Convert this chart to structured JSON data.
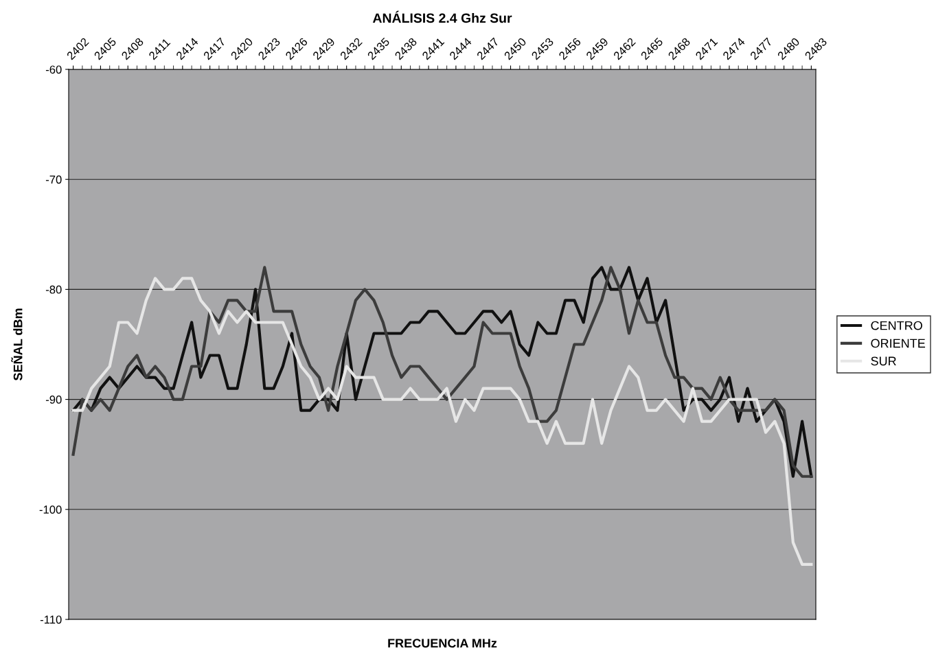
{
  "chart_data": {
    "type": "line",
    "title": "ANÁLISIS 2.4 Ghz Sur",
    "xlabel": "FRECUENCIA MHz",
    "ylabel": "SEÑAL dBm",
    "x": [
      2402,
      2403,
      2404,
      2405,
      2406,
      2407,
      2408,
      2409,
      2410,
      2411,
      2412,
      2413,
      2414,
      2415,
      2416,
      2417,
      2418,
      2419,
      2420,
      2421,
      2422,
      2423,
      2424,
      2425,
      2426,
      2427,
      2428,
      2429,
      2430,
      2431,
      2432,
      2433,
      2434,
      2435,
      2436,
      2437,
      2438,
      2439,
      2440,
      2441,
      2442,
      2443,
      2444,
      2445,
      2446,
      2447,
      2448,
      2449,
      2450,
      2451,
      2452,
      2453,
      2454,
      2455,
      2456,
      2457,
      2458,
      2459,
      2460,
      2461,
      2462,
      2463,
      2464,
      2465,
      2466,
      2467,
      2468,
      2469,
      2470,
      2471,
      2472,
      2473,
      2474,
      2475,
      2476,
      2477,
      2478,
      2479,
      2480,
      2481,
      2482,
      2483
    ],
    "xlim": [
      2401.5,
      2483.5
    ],
    "xticks": [
      2402,
      {
        "value": 2403,
        "label": null
      },
      {
        "value": 2404,
        "label": null
      },
      2405,
      {
        "value": 2406,
        "label": null
      },
      {
        "value": 2407,
        "label": null
      },
      2408,
      {
        "value": 2409,
        "label": null
      },
      {
        "value": 2410,
        "label": null
      },
      2411,
      {
        "value": 2412,
        "label": null
      },
      {
        "value": 2413,
        "label": null
      },
      2414,
      {
        "value": 2415,
        "label": null
      },
      {
        "value": 2416,
        "label": null
      },
      2417,
      {
        "value": 2418,
        "label": null
      },
      {
        "value": 2419,
        "label": null
      },
      2420,
      {
        "value": 2421,
        "label": null
      },
      {
        "value": 2422,
        "label": null
      },
      2423,
      {
        "value": 2424,
        "label": null
      },
      {
        "value": 2425,
        "label": null
      },
      2426,
      {
        "value": 2427,
        "label": null
      },
      {
        "value": 2428,
        "label": null
      },
      2429,
      {
        "value": 2430,
        "label": null
      },
      {
        "value": 2431,
        "label": null
      },
      2432,
      {
        "value": 2433,
        "label": null
      },
      {
        "value": 2434,
        "label": null
      },
      2435,
      {
        "value": 2436,
        "label": null
      },
      {
        "value": 2437,
        "label": null
      },
      2438,
      {
        "value": 2439,
        "label": null
      },
      {
        "value": 2440,
        "label": null
      },
      2441,
      {
        "value": 2442,
        "label": null
      },
      {
        "value": 2443,
        "label": null
      },
      2444,
      {
        "value": 2445,
        "label": null
      },
      {
        "value": 2446,
        "label": null
      },
      2447,
      {
        "value": 2448,
        "label": null
      },
      {
        "value": 2449,
        "label": null
      },
      2450,
      {
        "value": 2451,
        "label": null
      },
      {
        "value": 2452,
        "label": null
      },
      2453,
      {
        "value": 2454,
        "label": null
      },
      {
        "value": 2455,
        "label": null
      },
      2456,
      {
        "value": 2457,
        "label": null
      },
      {
        "value": 2458,
        "label": null
      },
      2459,
      {
        "value": 2460,
        "label": null
      },
      {
        "value": 2461,
        "label": null
      },
      2462,
      {
        "value": 2463,
        "label": null
      },
      {
        "value": 2464,
        "label": null
      },
      2465,
      {
        "value": 2466,
        "label": null
      },
      {
        "value": 2467,
        "label": null
      },
      2468,
      {
        "value": 2469,
        "label": null
      },
      {
        "value": 2470,
        "label": null
      },
      2471,
      {
        "value": 2472,
        "label": null
      },
      {
        "value": 2473,
        "label": null
      },
      2474,
      {
        "value": 2475,
        "label": null
      },
      {
        "value": 2476,
        "label": null
      },
      2477,
      {
        "value": 2478,
        "label": null
      },
      {
        "value": 2479,
        "label": null
      },
      2480,
      {
        "value": 2481,
        "label": null
      },
      {
        "value": 2482,
        "label": null
      },
      2483
    ],
    "series": [
      {
        "name": "CENTRO",
        "color": "#111111",
        "values": [
          -91,
          -90,
          -91,
          -89,
          -88,
          -89,
          -88,
          -87,
          -88,
          -88,
          -89,
          -89,
          -86,
          -83,
          -88,
          -86,
          -86,
          -89,
          -89,
          -85,
          -80,
          -89,
          -89,
          -87,
          -84,
          -91,
          -91,
          -90,
          -90,
          -91,
          -84,
          -90,
          -87,
          -84,
          -84,
          -84,
          -84,
          -83,
          -83,
          -82,
          -82,
          -83,
          -84,
          -84,
          -83,
          -82,
          -82,
          -83,
          -82,
          -85,
          -86,
          -83,
          -84,
          -84,
          -81,
          -81,
          -83,
          -79,
          -78,
          -80,
          -80,
          -78,
          -81,
          -79,
          -83,
          -81,
          -86,
          -91,
          -90,
          -90,
          -91,
          -90,
          -88,
          -92,
          -89,
          -92,
          -91,
          -90,
          -92,
          -97,
          -92,
          -97
        ]
      },
      {
        "name": "ORIENTE",
        "color": "#3c3c3c",
        "values": [
          -95,
          -90,
          -91,
          -90,
          -91,
          -89,
          -87,
          -86,
          -88,
          -87,
          -88,
          -90,
          -90,
          -87,
          -87,
          -82,
          -83,
          -81,
          -81,
          -82,
          -82,
          -78,
          -82,
          -82,
          -82,
          -85,
          -87,
          -88,
          -91,
          -87,
          -84,
          -81,
          -80,
          -81,
          -83,
          -86,
          -88,
          -87,
          -87,
          -88,
          -89,
          -90,
          -89,
          -88,
          -87,
          -83,
          -84,
          -84,
          -84,
          -87,
          -89,
          -92,
          -92,
          -91,
          -88,
          -85,
          -85,
          -83,
          -81,
          -78,
          -80,
          -84,
          -81,
          -83,
          -83,
          -86,
          -88,
          -88,
          -89,
          -89,
          -90,
          -88,
          -90,
          -91,
          -91,
          -91,
          -91,
          -90,
          -91,
          -96,
          -97,
          -97
        ]
      },
      {
        "name": "SUR",
        "color": "#e6e6e6",
        "values": [
          -91,
          -91,
          -89,
          -88,
          -87,
          -83,
          -83,
          -84,
          -81,
          -79,
          -80,
          -80,
          -79,
          -79,
          -81,
          -82,
          -84,
          -82,
          -83,
          -82,
          -83,
          -83,
          -83,
          -83,
          -85,
          -87,
          -88,
          -90,
          -89,
          -90,
          -87,
          -88,
          -88,
          -88,
          -90,
          -90,
          -90,
          -89,
          -90,
          -90,
          -90,
          -89,
          -92,
          -90,
          -91,
          -89,
          -89,
          -89,
          -89,
          -90,
          -92,
          -92,
          -94,
          -92,
          -94,
          -94,
          -94,
          -90,
          -94,
          -91,
          -89,
          -87,
          -88,
          -91,
          -91,
          -90,
          -91,
          -92,
          -89,
          -92,
          -92,
          -91,
          -90,
          -90,
          -90,
          -90,
          -93,
          -92,
          -94,
          -103,
          -105,
          -105
        ]
      }
    ],
    "ylim": [
      -110,
      -60
    ],
    "yticks": [
      -110,
      -100,
      -90,
      -80,
      -70,
      -60
    ],
    "grid": "y",
    "legend": "right",
    "line_style": "solid",
    "marker": "none"
  }
}
